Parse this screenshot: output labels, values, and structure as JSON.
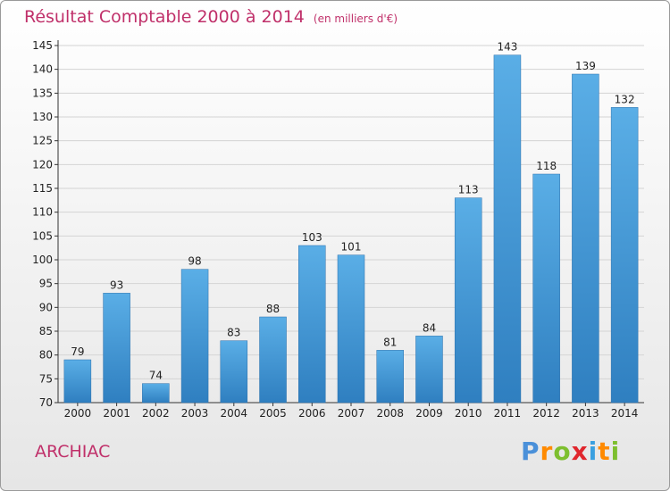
{
  "title": "Résultat Comptable 2000 à 2014",
  "subtitle": "(en milliers d'€)",
  "place": "ARCHIAC",
  "brand": {
    "letters": [
      "P",
      "r",
      "o",
      "x",
      "i",
      "t",
      "i"
    ],
    "colors": [
      "#4a90d9",
      "#ff8a00",
      "#7dbf2f",
      "#e0262d",
      "#3aa0e0",
      "#ff8a00",
      "#7dbf2f"
    ]
  },
  "colors": {
    "bar": "#3c95d8",
    "title": "#c0306a"
  },
  "chart_data": {
    "type": "bar",
    "categories": [
      "2000",
      "2001",
      "2002",
      "2003",
      "2004",
      "2005",
      "2006",
      "2007",
      "2008",
      "2009",
      "2010",
      "2011",
      "2012",
      "2013",
      "2014"
    ],
    "values": [
      79,
      93,
      74,
      98,
      83,
      88,
      103,
      101,
      81,
      84,
      113,
      143,
      118,
      139,
      132
    ],
    "ylim": [
      70,
      145
    ],
    "yticks": [
      70,
      75,
      80,
      85,
      90,
      95,
      100,
      105,
      110,
      115,
      120,
      125,
      130,
      135,
      140,
      145
    ],
    "grid": true,
    "xlabel": "",
    "ylabel": ""
  }
}
